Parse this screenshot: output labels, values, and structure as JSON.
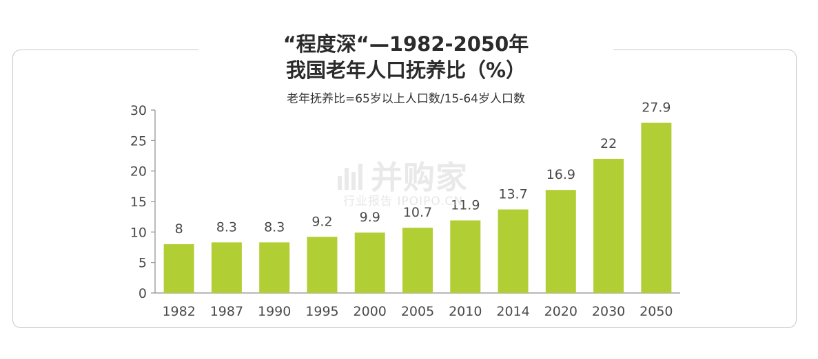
{
  "title_line1": "“程度深“—1982-2050年",
  "title_line2": "我国老年人口抚养比（%）",
  "subtitle": "老年抚养比=65岁以上人口数/15-64岁人口数",
  "watermark": {
    "main": "并购家",
    "sub": "行业报告 IPOIPO.CN"
  },
  "chart_data": {
    "type": "bar",
    "categories": [
      "1982",
      "1987",
      "1990",
      "1995",
      "2000",
      "2005",
      "2010",
      "2014",
      "2020",
      "2030",
      "2050"
    ],
    "values": [
      8,
      8.3,
      8.3,
      9.2,
      9.9,
      10.7,
      11.9,
      13.7,
      16.9,
      22,
      27.9
    ],
    "value_labels": [
      "8",
      "8.3",
      "8.3",
      "9.2",
      "9.9",
      "10.7",
      "11.9",
      "13.7",
      "16.9",
      "22",
      "27.9"
    ],
    "ylim": [
      0,
      30
    ],
    "yticks": [
      0,
      5,
      10,
      15,
      20,
      25,
      30
    ],
    "bar_color": "#b1cf35",
    "grid": false,
    "legend": "none"
  }
}
